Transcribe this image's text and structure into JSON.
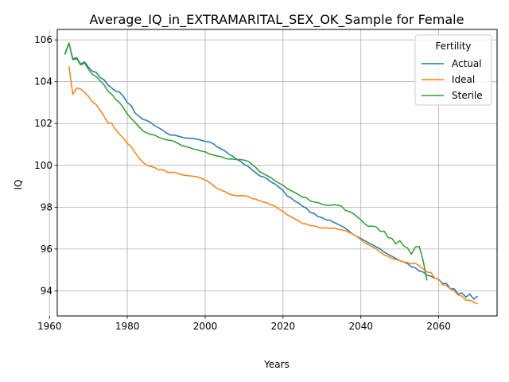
{
  "chart_data": {
    "type": "line",
    "title": "Average_IQ_in_EXTRAMARITAL_SEX_OK_Sample for Female",
    "xlabel": "Years",
    "ylabel": "IQ",
    "xlim": [
      1962,
      2075
    ],
    "ylim": [
      92.8,
      106.5
    ],
    "xticks": [
      1960,
      1980,
      2000,
      2020,
      2040,
      2060
    ],
    "yticks": [
      94,
      96,
      98,
      100,
      102,
      104,
      106
    ],
    "grid": true,
    "legend": {
      "title": "Fertility",
      "placement": "top-right"
    },
    "series": [
      {
        "name": "Actual",
        "color": "#1f77b4",
        "points": [
          [
            1964,
            105.3
          ],
          [
            1965,
            105.85
          ],
          [
            1966,
            105.1
          ],
          [
            1967,
            105.15
          ],
          [
            1968,
            104.85
          ],
          [
            1969,
            104.95
          ],
          [
            1970,
            104.7
          ],
          [
            1971,
            104.5
          ],
          [
            1972,
            104.45
          ],
          [
            1973,
            104.2
          ],
          [
            1974,
            104.1
          ],
          [
            1975,
            103.85
          ],
          [
            1976,
            103.7
          ],
          [
            1977,
            103.55
          ],
          [
            1978,
            103.5
          ],
          [
            1979,
            103.3
          ],
          [
            1980,
            103.0
          ],
          [
            1981,
            102.85
          ],
          [
            1982,
            102.5
          ],
          [
            1983,
            102.35
          ],
          [
            1984,
            102.2
          ],
          [
            1985,
            102.15
          ],
          [
            1986,
            102.05
          ],
          [
            1987,
            101.9
          ],
          [
            1988,
            101.8
          ],
          [
            1989,
            101.7
          ],
          [
            1990,
            101.55
          ],
          [
            1991,
            101.45
          ],
          [
            1992,
            101.45
          ],
          [
            1993,
            101.4
          ],
          [
            1994,
            101.35
          ],
          [
            1995,
            101.3
          ],
          [
            1996,
            101.3
          ],
          [
            1997,
            101.28
          ],
          [
            1998,
            101.25
          ],
          [
            1999,
            101.2
          ],
          [
            2000,
            101.15
          ],
          [
            2001,
            101.12
          ],
          [
            2002,
            101.05
          ],
          [
            2003,
            100.9
          ],
          [
            2004,
            100.8
          ],
          [
            2005,
            100.7
          ],
          [
            2006,
            100.55
          ],
          [
            2007,
            100.45
          ],
          [
            2008,
            100.3
          ],
          [
            2009,
            100.2
          ],
          [
            2010,
            100.05
          ],
          [
            2011,
            99.95
          ],
          [
            2012,
            99.8
          ],
          [
            2013,
            99.65
          ],
          [
            2014,
            99.5
          ],
          [
            2015,
            99.45
          ],
          [
            2016,
            99.35
          ],
          [
            2017,
            99.2
          ],
          [
            2018,
            99.1
          ],
          [
            2019,
            98.95
          ],
          [
            2020,
            98.8
          ],
          [
            2021,
            98.55
          ],
          [
            2022,
            98.45
          ],
          [
            2023,
            98.3
          ],
          [
            2024,
            98.2
          ],
          [
            2025,
            98.05
          ],
          [
            2026,
            97.95
          ],
          [
            2027,
            97.75
          ],
          [
            2028,
            97.7
          ],
          [
            2029,
            97.55
          ],
          [
            2030,
            97.5
          ],
          [
            2031,
            97.4
          ],
          [
            2032,
            97.38
          ],
          [
            2033,
            97.28
          ],
          [
            2034,
            97.2
          ],
          [
            2035,
            97.1
          ],
          [
            2036,
            97.0
          ],
          [
            2037,
            96.85
          ],
          [
            2038,
            96.7
          ],
          [
            2039,
            96.6
          ],
          [
            2040,
            96.5
          ],
          [
            2041,
            96.4
          ],
          [
            2042,
            96.3
          ],
          [
            2043,
            96.2
          ],
          [
            2044,
            96.1
          ],
          [
            2045,
            96.0
          ],
          [
            2046,
            95.85
          ],
          [
            2047,
            95.75
          ],
          [
            2048,
            95.65
          ],
          [
            2049,
            95.55
          ],
          [
            2050,
            95.45
          ],
          [
            2051,
            95.38
          ],
          [
            2052,
            95.3
          ],
          [
            2053,
            95.15
          ],
          [
            2054,
            95.1
          ],
          [
            2055,
            94.95
          ],
          [
            2056,
            94.9
          ],
          [
            2057,
            94.75
          ],
          [
            2058,
            94.7
          ],
          [
            2059,
            94.6
          ],
          [
            2060,
            94.55
          ],
          [
            2061,
            94.35
          ],
          [
            2062,
            94.35
          ],
          [
            2063,
            94.1
          ],
          [
            2064,
            94.1
          ],
          [
            2065,
            93.85
          ],
          [
            2066,
            93.9
          ],
          [
            2067,
            93.7
          ],
          [
            2068,
            93.85
          ],
          [
            2069,
            93.6
          ],
          [
            2070,
            93.75
          ]
        ]
      },
      {
        "name": "Ideal",
        "color": "#ff7f0e",
        "points": [
          [
            1965,
            104.75
          ],
          [
            1966,
            103.4
          ],
          [
            1967,
            103.7
          ],
          [
            1968,
            103.65
          ],
          [
            1969,
            103.5
          ],
          [
            1970,
            103.3
          ],
          [
            1971,
            103.05
          ],
          [
            1972,
            102.9
          ],
          [
            1973,
            102.65
          ],
          [
            1974,
            102.35
          ],
          [
            1975,
            102.05
          ],
          [
            1976,
            102.0
          ],
          [
            1977,
            101.7
          ],
          [
            1978,
            101.5
          ],
          [
            1979,
            101.3
          ],
          [
            1980,
            101.05
          ],
          [
            1981,
            100.9
          ],
          [
            1982,
            100.6
          ],
          [
            1983,
            100.35
          ],
          [
            1984,
            100.15
          ],
          [
            1985,
            100.0
          ],
          [
            1986,
            99.95
          ],
          [
            1987,
            99.9
          ],
          [
            1988,
            99.78
          ],
          [
            1989,
            99.8
          ],
          [
            1990,
            99.7
          ],
          [
            1991,
            99.65
          ],
          [
            1992,
            99.68
          ],
          [
            1993,
            99.62
          ],
          [
            1994,
            99.55
          ],
          [
            1995,
            99.52
          ],
          [
            1996,
            99.5
          ],
          [
            1997,
            99.48
          ],
          [
            1998,
            99.45
          ],
          [
            1999,
            99.38
          ],
          [
            2000,
            99.3
          ],
          [
            2001,
            99.2
          ],
          [
            2002,
            99.05
          ],
          [
            2003,
            98.9
          ],
          [
            2004,
            98.82
          ],
          [
            2005,
            98.75
          ],
          [
            2006,
            98.65
          ],
          [
            2007,
            98.58
          ],
          [
            2008,
            98.55
          ],
          [
            2009,
            98.55
          ],
          [
            2010,
            98.55
          ],
          [
            2011,
            98.52
          ],
          [
            2012,
            98.42
          ],
          [
            2013,
            98.38
          ],
          [
            2014,
            98.3
          ],
          [
            2015,
            98.25
          ],
          [
            2016,
            98.2
          ],
          [
            2017,
            98.1
          ],
          [
            2018,
            98.05
          ],
          [
            2019,
            97.9
          ],
          [
            2020,
            97.8
          ],
          [
            2021,
            97.65
          ],
          [
            2022,
            97.55
          ],
          [
            2023,
            97.45
          ],
          [
            2024,
            97.35
          ],
          [
            2025,
            97.22
          ],
          [
            2026,
            97.2
          ],
          [
            2027,
            97.12
          ],
          [
            2028,
            97.1
          ],
          [
            2029,
            97.05
          ],
          [
            2030,
            97.0
          ],
          [
            2031,
            97.02
          ],
          [
            2032,
            96.98
          ],
          [
            2033,
            97.0
          ],
          [
            2034,
            96.95
          ],
          [
            2035,
            96.92
          ],
          [
            2036,
            96.88
          ],
          [
            2037,
            96.8
          ],
          [
            2038,
            96.7
          ],
          [
            2039,
            96.6
          ],
          [
            2040,
            96.45
          ],
          [
            2041,
            96.3
          ],
          [
            2042,
            96.2
          ],
          [
            2043,
            96.1
          ],
          [
            2044,
            96.0
          ],
          [
            2045,
            95.85
          ],
          [
            2046,
            95.72
          ],
          [
            2047,
            95.65
          ],
          [
            2048,
            95.55
          ],
          [
            2049,
            95.5
          ],
          [
            2050,
            95.45
          ],
          [
            2051,
            95.38
          ],
          [
            2052,
            95.35
          ],
          [
            2053,
            95.3
          ],
          [
            2054,
            95.32
          ],
          [
            2055,
            95.2
          ],
          [
            2056,
            95.05
          ],
          [
            2057,
            94.9
          ],
          [
            2058,
            94.88
          ],
          [
            2059,
            94.6
          ],
          [
            2060,
            94.55
          ],
          [
            2061,
            94.3
          ],
          [
            2062,
            94.25
          ],
          [
            2063,
            94.1
          ],
          [
            2064,
            94.0
          ],
          [
            2065,
            93.8
          ],
          [
            2066,
            93.75
          ],
          [
            2067,
            93.55
          ],
          [
            2068,
            93.55
          ],
          [
            2069,
            93.45
          ],
          [
            2070,
            93.38
          ]
        ]
      },
      {
        "name": "Sterile",
        "color": "#2ca02c",
        "points": [
          [
            1964,
            105.35
          ],
          [
            1965,
            105.85
          ],
          [
            1966,
            105.05
          ],
          [
            1967,
            105.1
          ],
          [
            1968,
            104.8
          ],
          [
            1969,
            104.9
          ],
          [
            1970,
            104.6
          ],
          [
            1971,
            104.35
          ],
          [
            1972,
            104.25
          ],
          [
            1973,
            104.05
          ],
          [
            1974,
            103.85
          ],
          [
            1975,
            103.55
          ],
          [
            1976,
            103.4
          ],
          [
            1977,
            103.15
          ],
          [
            1978,
            103.0
          ],
          [
            1979,
            102.75
          ],
          [
            1980,
            102.45
          ],
          [
            1981,
            102.25
          ],
          [
            1982,
            102.05
          ],
          [
            1983,
            101.85
          ],
          [
            1984,
            101.65
          ],
          [
            1985,
            101.55
          ],
          [
            1986,
            101.48
          ],
          [
            1987,
            101.45
          ],
          [
            1988,
            101.35
          ],
          [
            1989,
            101.28
          ],
          [
            1990,
            101.22
          ],
          [
            1991,
            101.2
          ],
          [
            1992,
            101.15
          ],
          [
            1993,
            101.05
          ],
          [
            1994,
            100.95
          ],
          [
            1995,
            100.9
          ],
          [
            1996,
            100.85
          ],
          [
            1997,
            100.78
          ],
          [
            1998,
            100.75
          ],
          [
            1999,
            100.68
          ],
          [
            2000,
            100.65
          ],
          [
            2001,
            100.55
          ],
          [
            2002,
            100.5
          ],
          [
            2003,
            100.45
          ],
          [
            2004,
            100.42
          ],
          [
            2005,
            100.35
          ],
          [
            2006,
            100.3
          ],
          [
            2007,
            100.3
          ],
          [
            2008,
            100.28
          ],
          [
            2009,
            100.28
          ],
          [
            2010,
            100.25
          ],
          [
            2011,
            100.2
          ],
          [
            2012,
            100.05
          ],
          [
            2013,
            99.9
          ],
          [
            2014,
            99.7
          ],
          [
            2015,
            99.6
          ],
          [
            2016,
            99.5
          ],
          [
            2017,
            99.4
          ],
          [
            2018,
            99.25
          ],
          [
            2019,
            99.15
          ],
          [
            2020,
            99.05
          ],
          [
            2021,
            98.9
          ],
          [
            2022,
            98.8
          ],
          [
            2023,
            98.7
          ],
          [
            2024,
            98.6
          ],
          [
            2025,
            98.48
          ],
          [
            2026,
            98.45
          ],
          [
            2027,
            98.3
          ],
          [
            2028,
            98.25
          ],
          [
            2029,
            98.22
          ],
          [
            2030,
            98.15
          ],
          [
            2031,
            98.1
          ],
          [
            2032,
            98.08
          ],
          [
            2033,
            98.12
          ],
          [
            2034,
            98.1
          ],
          [
            2035,
            98.05
          ],
          [
            2036,
            97.85
          ],
          [
            2037,
            97.8
          ],
          [
            2038,
            97.7
          ],
          [
            2039,
            97.55
          ],
          [
            2040,
            97.4
          ],
          [
            2041,
            97.2
          ],
          [
            2042,
            97.08
          ],
          [
            2043,
            97.1
          ],
          [
            2044,
            97.05
          ],
          [
            2045,
            96.85
          ],
          [
            2046,
            96.85
          ],
          [
            2047,
            96.55
          ],
          [
            2048,
            96.5
          ],
          [
            2049,
            96.25
          ],
          [
            2050,
            96.4
          ],
          [
            2051,
            96.15
          ],
          [
            2052,
            96.05
          ],
          [
            2053,
            95.75
          ],
          [
            2054,
            96.1
          ],
          [
            2055,
            96.12
          ],
          [
            2056,
            95.45
          ],
          [
            2057,
            94.5
          ]
        ]
      }
    ]
  }
}
